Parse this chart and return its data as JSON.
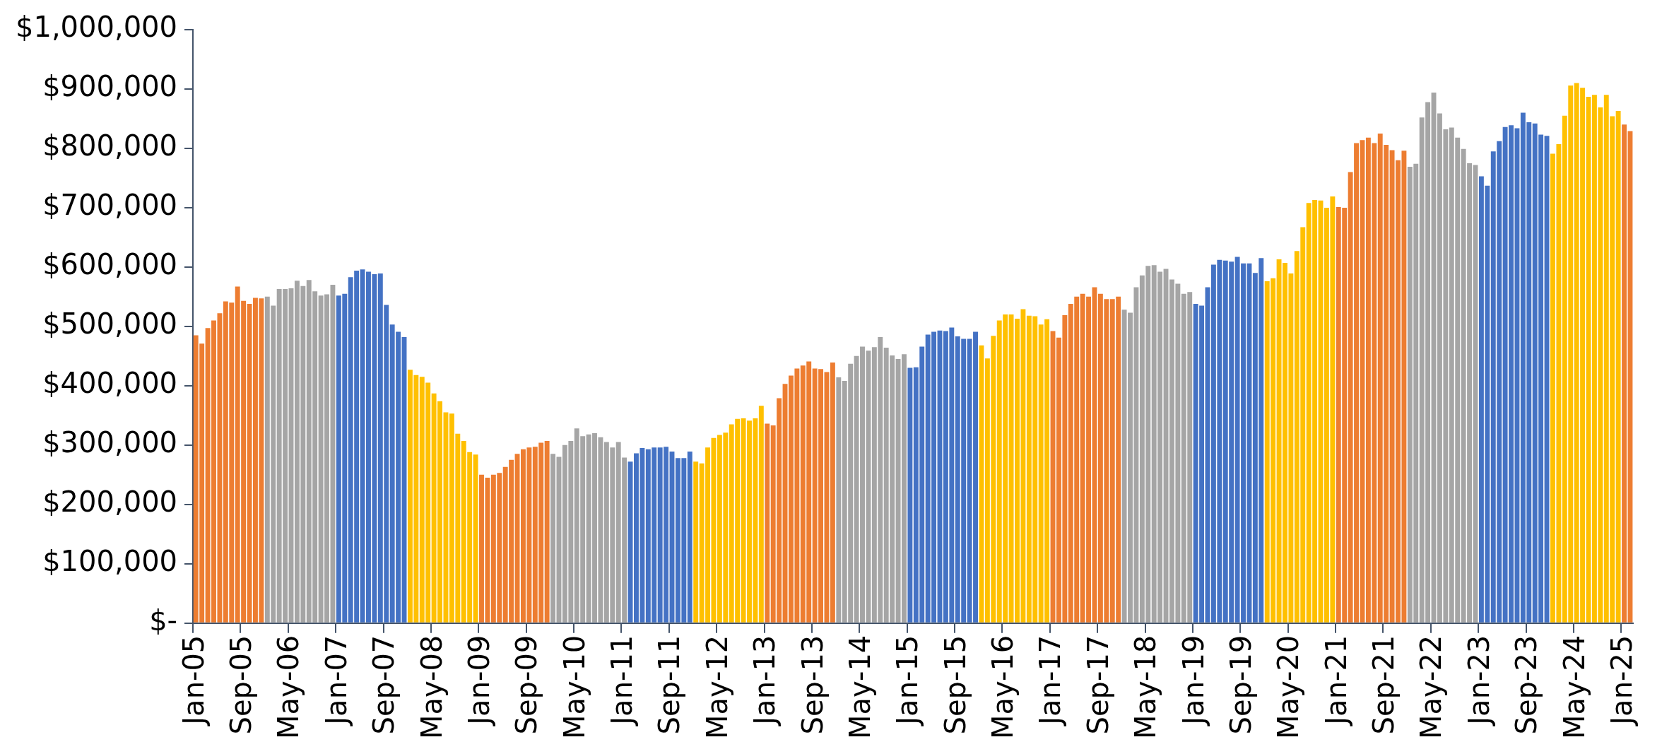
{
  "chart_data": {
    "type": "bar",
    "categories": [
      "Jan-05",
      null,
      null,
      null,
      null,
      null,
      null,
      null,
      "Sep-05",
      null,
      null,
      null,
      null,
      null,
      null,
      null,
      "May-06",
      null,
      null,
      null,
      null,
      null,
      null,
      null,
      "Jan-07",
      null,
      null,
      null,
      null,
      null,
      null,
      null,
      "Sep-07",
      null,
      null,
      null,
      null,
      null,
      null,
      null,
      "May-08",
      null,
      null,
      null,
      null,
      null,
      null,
      null,
      "Jan-09",
      null,
      null,
      null,
      null,
      null,
      null,
      null,
      "Sep-09",
      null,
      null,
      null,
      null,
      null,
      null,
      null,
      "May-10",
      null,
      null,
      null,
      null,
      null,
      null,
      null,
      "Jan-11",
      null,
      null,
      null,
      null,
      null,
      null,
      null,
      "Sep-11",
      null,
      null,
      null,
      null,
      null,
      null,
      null,
      "May-12",
      null,
      null,
      null,
      null,
      null,
      null,
      null,
      "Jan-13",
      null,
      null,
      null,
      null,
      null,
      null,
      null,
      "Sep-13",
      null,
      null,
      null,
      null,
      null,
      null,
      null,
      "May-14",
      null,
      null,
      null,
      null,
      null,
      null,
      null,
      "Jan-15",
      null,
      null,
      null,
      null,
      null,
      null,
      null,
      "Sep-15",
      null,
      null,
      null,
      null,
      null,
      null,
      null,
      "May-16",
      null,
      null,
      null,
      null,
      null,
      null,
      null,
      "Jan-17",
      null,
      null,
      null,
      null,
      null,
      null,
      null,
      "Sep-17",
      null,
      null,
      null,
      null,
      null,
      null,
      null,
      "May-18",
      null,
      null,
      null,
      null,
      null,
      null,
      null,
      "Jan-19",
      null,
      null,
      null,
      null,
      null,
      null,
      null,
      "Sep-19",
      null,
      null,
      null,
      null,
      null,
      null,
      null,
      "May-20",
      null,
      null,
      null,
      null,
      null,
      null,
      null,
      "Jan-21",
      null,
      null,
      null,
      null,
      null,
      null,
      null,
      "Sep-21",
      null,
      null,
      null,
      null,
      null,
      null,
      null,
      "May-22",
      null,
      null,
      null,
      null,
      null,
      null,
      null,
      "Jan-23",
      null,
      null,
      null,
      null,
      null,
      null,
      null,
      "Sep-23",
      null,
      null,
      null,
      null,
      null,
      null,
      null,
      "May-24",
      null,
      null,
      null,
      null,
      null,
      null,
      null,
      "Jan-25",
      null
    ],
    "values": [
      485000,
      471000,
      497000,
      510000,
      522000,
      542000,
      540000,
      567000,
      543000,
      538000,
      548000,
      547000,
      550000,
      535000,
      563000,
      563000,
      564000,
      577000,
      568000,
      578000,
      559000,
      552000,
      554000,
      570000,
      552000,
      555000,
      583000,
      594000,
      596000,
      592000,
      588000,
      589000,
      536000,
      503000,
      491000,
      482000,
      427000,
      418000,
      415000,
      405000,
      387000,
      374000,
      355000,
      353000,
      319000,
      307000,
      288000,
      284000,
      250000,
      245000,
      250000,
      253000,
      263000,
      275000,
      285000,
      293000,
      296000,
      297000,
      304000,
      307000,
      285000,
      280000,
      300000,
      307000,
      328000,
      315000,
      318000,
      320000,
      313000,
      305000,
      296000,
      305000,
      279000,
      272000,
      286000,
      295000,
      293000,
      296000,
      296000,
      297000,
      289000,
      278000,
      278000,
      289000,
      272000,
      269000,
      296000,
      312000,
      317000,
      321000,
      335000,
      344000,
      345000,
      341000,
      345000,
      366000,
      336000,
      333000,
      379000,
      403000,
      417000,
      429000,
      434000,
      441000,
      429000,
      428000,
      423000,
      439000,
      414000,
      408000,
      437000,
      450000,
      466000,
      459000,
      465000,
      482000,
      464000,
      451000,
      445000,
      453000,
      430000,
      431000,
      466000,
      486000,
      491000,
      493000,
      492000,
      498000,
      483000,
      479000,
      479000,
      491000,
      468000,
      446000,
      484000,
      510000,
      520000,
      520000,
      513000,
      529000,
      518000,
      517000,
      503000,
      512000,
      492000,
      481000,
      519000,
      538000,
      550000,
      555000,
      550000,
      566000,
      555000,
      546000,
      546000,
      550000,
      528000,
      523000,
      566000,
      586000,
      602000,
      603000,
      592000,
      597000,
      579000,
      572000,
      555000,
      558000,
      538000,
      535000,
      566000,
      604000,
      612000,
      611000,
      609000,
      617000,
      606000,
      606000,
      590000,
      615000,
      576000,
      581000,
      613000,
      607000,
      589000,
      627000,
      667000,
      708000,
      713000,
      712000,
      700000,
      719000,
      701000,
      700000,
      760000,
      809000,
      814000,
      818000,
      809000,
      825000,
      806000,
      797000,
      780000,
      796000,
      769000,
      774000,
      852000,
      878000,
      894000,
      859000,
      832000,
      835000,
      818000,
      799000,
      775000,
      772000,
      753000,
      737000,
      795000,
      812000,
      836000,
      839000,
      834000,
      860000,
      844000,
      842000,
      823000,
      821000,
      791000,
      807000,
      855000,
      906000,
      910000,
      902000,
      887000,
      890000,
      869000,
      890000,
      854000,
      863000,
      840000,
      829000
    ],
    "colors": [
      "#ed7d31",
      "#ed7d31",
      "#ed7d31",
      "#ed7d31",
      "#ed7d31",
      "#ed7d31",
      "#ed7d31",
      "#ed7d31",
      "#ed7d31",
      "#ed7d31",
      "#ed7d31",
      "#ed7d31",
      "#a5a5a5",
      "#a5a5a5",
      "#a5a5a5",
      "#a5a5a5",
      "#a5a5a5",
      "#a5a5a5",
      "#a5a5a5",
      "#a5a5a5",
      "#a5a5a5",
      "#a5a5a5",
      "#a5a5a5",
      "#a5a5a5",
      "#4472c4",
      "#4472c4",
      "#4472c4",
      "#4472c4",
      "#4472c4",
      "#4472c4",
      "#4472c4",
      "#4472c4",
      "#4472c4",
      "#4472c4",
      "#4472c4",
      "#4472c4",
      "#ffc000",
      "#ffc000",
      "#ffc000",
      "#ffc000",
      "#ffc000",
      "#ffc000",
      "#ffc000",
      "#ffc000",
      "#ffc000",
      "#ffc000",
      "#ffc000",
      "#ffc000",
      "#ed7d31",
      "#ed7d31",
      "#ed7d31",
      "#ed7d31",
      "#ed7d31",
      "#ed7d31",
      "#ed7d31",
      "#ed7d31",
      "#ed7d31",
      "#ed7d31",
      "#ed7d31",
      "#ed7d31",
      "#a5a5a5",
      "#a5a5a5",
      "#a5a5a5",
      "#a5a5a5",
      "#a5a5a5",
      "#a5a5a5",
      "#a5a5a5",
      "#a5a5a5",
      "#a5a5a5",
      "#a5a5a5",
      "#a5a5a5",
      "#a5a5a5",
      "#a5a5a5",
      "#4472c4",
      "#4472c4",
      "#4472c4",
      "#4472c4",
      "#4472c4",
      "#4472c4",
      "#4472c4",
      "#4472c4",
      "#4472c4",
      "#4472c4",
      "#4472c4",
      "#ffc000",
      "#ffc000",
      "#ffc000",
      "#ffc000",
      "#ffc000",
      "#ffc000",
      "#ffc000",
      "#ffc000",
      "#ffc000",
      "#ffc000",
      "#ffc000",
      "#ffc000",
      "#ed7d31",
      "#ed7d31",
      "#ed7d31",
      "#ed7d31",
      "#ed7d31",
      "#ed7d31",
      "#ed7d31",
      "#ed7d31",
      "#ed7d31",
      "#ed7d31",
      "#ed7d31",
      "#ed7d31",
      "#a5a5a5",
      "#a5a5a5",
      "#a5a5a5",
      "#a5a5a5",
      "#a5a5a5",
      "#a5a5a5",
      "#a5a5a5",
      "#a5a5a5",
      "#a5a5a5",
      "#a5a5a5",
      "#a5a5a5",
      "#a5a5a5",
      "#4472c4",
      "#4472c4",
      "#4472c4",
      "#4472c4",
      "#4472c4",
      "#4472c4",
      "#4472c4",
      "#4472c4",
      "#4472c4",
      "#4472c4",
      "#4472c4",
      "#4472c4",
      "#ffc000",
      "#ffc000",
      "#ffc000",
      "#ffc000",
      "#ffc000",
      "#ffc000",
      "#ffc000",
      "#ffc000",
      "#ffc000",
      "#ffc000",
      "#ffc000",
      "#ffc000",
      "#ed7d31",
      "#ed7d31",
      "#ed7d31",
      "#ed7d31",
      "#ed7d31",
      "#ed7d31",
      "#ed7d31",
      "#ed7d31",
      "#ed7d31",
      "#ed7d31",
      "#ed7d31",
      "#ed7d31",
      "#a5a5a5",
      "#a5a5a5",
      "#a5a5a5",
      "#a5a5a5",
      "#a5a5a5",
      "#a5a5a5",
      "#a5a5a5",
      "#a5a5a5",
      "#a5a5a5",
      "#a5a5a5",
      "#a5a5a5",
      "#a5a5a5",
      "#4472c4",
      "#4472c4",
      "#4472c4",
      "#4472c4",
      "#4472c4",
      "#4472c4",
      "#4472c4",
      "#4472c4",
      "#4472c4",
      "#4472c4",
      "#4472c4",
      "#4472c4",
      "#ffc000",
      "#ffc000",
      "#ffc000",
      "#ffc000",
      "#ffc000",
      "#ffc000",
      "#ffc000",
      "#ffc000",
      "#ffc000",
      "#ffc000",
      "#ffc000",
      "#ffc000",
      "#ed7d31",
      "#ed7d31",
      "#ed7d31",
      "#ed7d31",
      "#ed7d31",
      "#ed7d31",
      "#ed7d31",
      "#ed7d31",
      "#ed7d31",
      "#ed7d31",
      "#ed7d31",
      "#ed7d31",
      "#a5a5a5",
      "#a5a5a5",
      "#a5a5a5",
      "#a5a5a5",
      "#a5a5a5",
      "#a5a5a5",
      "#a5a5a5",
      "#a5a5a5",
      "#a5a5a5",
      "#a5a5a5",
      "#a5a5a5",
      "#a5a5a5",
      "#4472c4",
      "#4472c4",
      "#4472c4",
      "#4472c4",
      "#4472c4",
      "#4472c4",
      "#4472c4",
      "#4472c4",
      "#4472c4",
      "#4472c4",
      "#4472c4",
      "#4472c4",
      "#ffc000",
      "#ffc000",
      "#ffc000",
      "#ffc000",
      "#ffc000",
      "#ffc000",
      "#ffc000",
      "#ffc000",
      "#ffc000",
      "#ffc000",
      "#ffc000",
      "#ffc000",
      "#ed7d31",
      "#ed7d31"
    ],
    "ylim": [
      0,
      1000000
    ],
    "yticks": [
      {
        "value": 0,
        "label": "$-"
      },
      {
        "value": 100000,
        "label": "$100,000"
      },
      {
        "value": 200000,
        "label": "$200,000"
      },
      {
        "value": 300000,
        "label": "$300,000"
      },
      {
        "value": 400000,
        "label": "$400,000"
      },
      {
        "value": 500000,
        "label": "$500,000"
      },
      {
        "value": 600000,
        "label": "$600,000"
      },
      {
        "value": 700000,
        "label": "$700,000"
      },
      {
        "value": 800000,
        "label": "$800,000"
      },
      {
        "value": 900000,
        "label": "$900,000"
      },
      {
        "value": 1000000,
        "label": "$1,000,000"
      }
    ]
  }
}
